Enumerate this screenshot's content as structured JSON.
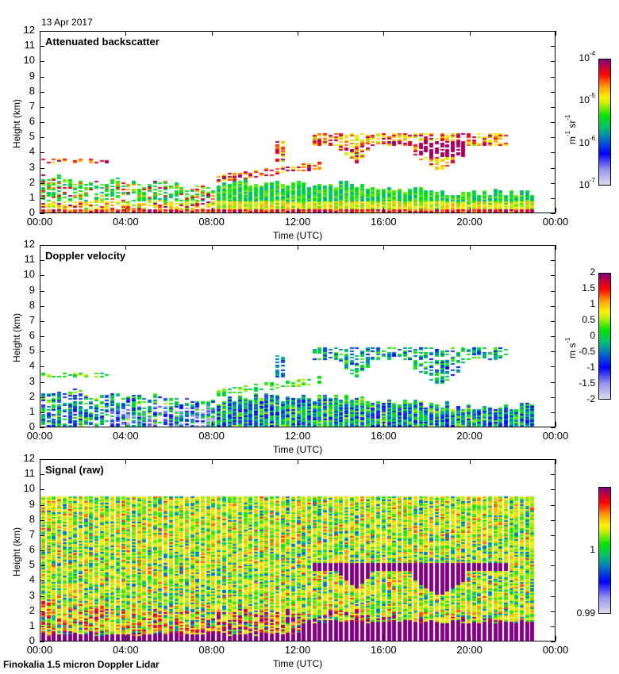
{
  "date_label": "13 Apr 2017",
  "footer": "Finokalia 1.5 micron Doppler Lidar",
  "chart_data": [
    {
      "type": "heatmap",
      "title": "Attenuated backscatter",
      "xlabel": "Time (UTC)",
      "ylabel": "Height (km)",
      "x_ticks": [
        "00:00",
        "04:00",
        "08:00",
        "12:00",
        "16:00",
        "20:00",
        "00:00"
      ],
      "y_ticks": [
        "0",
        "1",
        "2",
        "3",
        "4",
        "5",
        "6",
        "7",
        "8",
        "9",
        "10",
        "11",
        "12"
      ],
      "xlim_hours": [
        0,
        24
      ],
      "ylim_km": [
        0,
        12
      ],
      "data_end_hour": 22.85,
      "colorbar": {
        "scale": "log",
        "range": [
          1e-07,
          0.0001
        ],
        "ticks": [
          {
            "base": "10",
            "exp": "-4"
          },
          {
            "base": "10",
            "exp": "-5"
          },
          {
            "base": "10",
            "exp": "-6"
          },
          {
            "base": "10",
            "exp": "-7"
          }
        ],
        "unit": "m-1 sr-1",
        "unit_parts": [
          {
            "base": "m",
            "exp": "-1"
          },
          {
            "base": " sr",
            "exp": "-1"
          }
        ]
      },
      "features": {
        "boundary_layer_top_km": [
          [
            0,
            2.5
          ],
          [
            8,
            1.8
          ],
          [
            10,
            2.1
          ],
          [
            14,
            2.0
          ],
          [
            18,
            1.5
          ],
          [
            22.85,
            1.4
          ]
        ],
        "cloud_layers": "aerosol layer ~3.5 km (00:00-03:00), rising layer 2.3-3.2 km (08:00-13:00), cloud 4-5.5 km (12:30-21:30)"
      }
    },
    {
      "type": "heatmap",
      "title": "Doppler velocity",
      "xlabel": "Time (UTC)",
      "ylabel": "Height (km)",
      "x_ticks": [
        "00:00",
        "04:00",
        "08:00",
        "12:00",
        "16:00",
        "20:00",
        "00:00"
      ],
      "y_ticks": [
        "0",
        "1",
        "2",
        "3",
        "4",
        "5",
        "6",
        "7",
        "8",
        "9",
        "10",
        "11",
        "12"
      ],
      "xlim_hours": [
        0,
        24
      ],
      "ylim_km": [
        0,
        12
      ],
      "data_end_hour": 22.85,
      "colorbar": {
        "scale": "linear",
        "range": [
          -2,
          2
        ],
        "ticks": [
          "2",
          "1.5",
          "1",
          "0.5",
          "0",
          "-0.5",
          "-1",
          "-1.5",
          "-2"
        ],
        "unit_parts": [
          {
            "base": "m s",
            "exp": "-1"
          }
        ]
      }
    },
    {
      "type": "heatmap",
      "title": "Signal (raw)",
      "xlabel": "Time (UTC)",
      "ylabel": "Height (km)",
      "x_ticks": [
        "00:00",
        "04:00",
        "08:00",
        "12:00",
        "16:00",
        "20:00",
        "00:00"
      ],
      "y_ticks": [
        "0",
        "1",
        "2",
        "3",
        "4",
        "5",
        "6",
        "7",
        "8",
        "9",
        "10",
        "11",
        "12"
      ],
      "xlim_hours": [
        0,
        24
      ],
      "ylim_km": [
        0,
        12
      ],
      "data_top_km": 9.6,
      "data_end_hour": 22.85,
      "colorbar": {
        "scale": "linear",
        "range": [
          0.99,
          1.01
        ],
        "ticks": [
          "1",
          "0.99"
        ],
        "tick_values": [
          1,
          0.99
        ]
      }
    }
  ]
}
